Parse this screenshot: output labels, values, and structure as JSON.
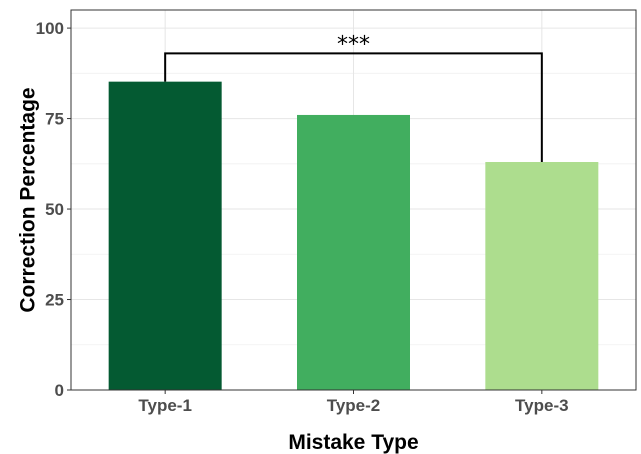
{
  "chart_data": {
    "type": "bar",
    "title": "",
    "xlabel": "Mistake Type",
    "ylabel": "Correction Percentage",
    "categories": [
      "Type-1",
      "Type-2",
      "Type-3"
    ],
    "values": [
      85.2,
      76.0,
      63.0
    ],
    "colors": [
      "#045a32",
      "#41ae5f",
      "#addd8e"
    ],
    "ylim": [
      0,
      105
    ],
    "yticks": [
      0,
      25,
      50,
      75,
      100
    ],
    "grid": true,
    "significance": {
      "from": "Type-1",
      "to": "Type-3",
      "label": "***",
      "y": 93
    }
  }
}
